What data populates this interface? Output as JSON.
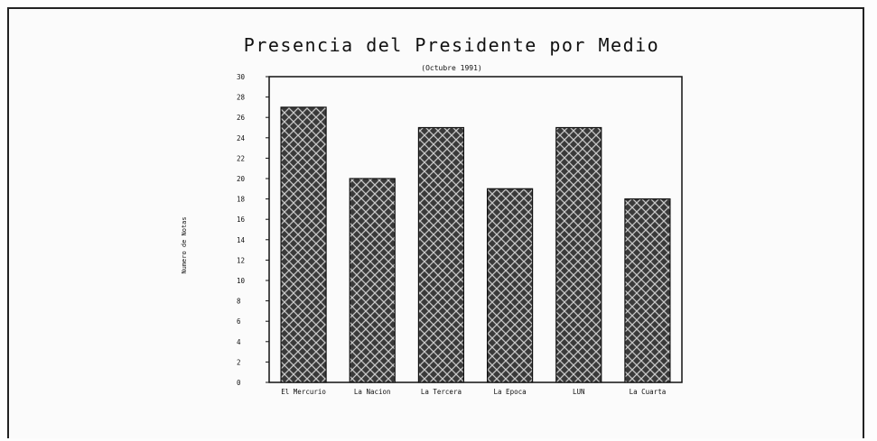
{
  "chart_data": {
    "type": "bar",
    "title": "Presencia del Presidente por Medio",
    "subtitle": "(Octubre 1991)",
    "ylabel": "Numero de Notas",
    "xlabel": "",
    "categories": [
      "El Mercurio",
      "La Nacion",
      "La Tercera",
      "La Epoca",
      "LUN",
      "La Cuarta"
    ],
    "values": [
      27,
      20,
      25,
      19,
      25,
      18
    ],
    "ylim": [
      0,
      30
    ],
    "yticks": [
      "0",
      "2",
      "4",
      "6",
      "8",
      "10",
      "12",
      "14",
      "16",
      "18",
      "20",
      "22",
      "24",
      "26",
      "28",
      "30"
    ],
    "grid": false,
    "legend": "none",
    "bar_color": "#3a3a3a",
    "hatch_color": "#c8c8c8"
  }
}
